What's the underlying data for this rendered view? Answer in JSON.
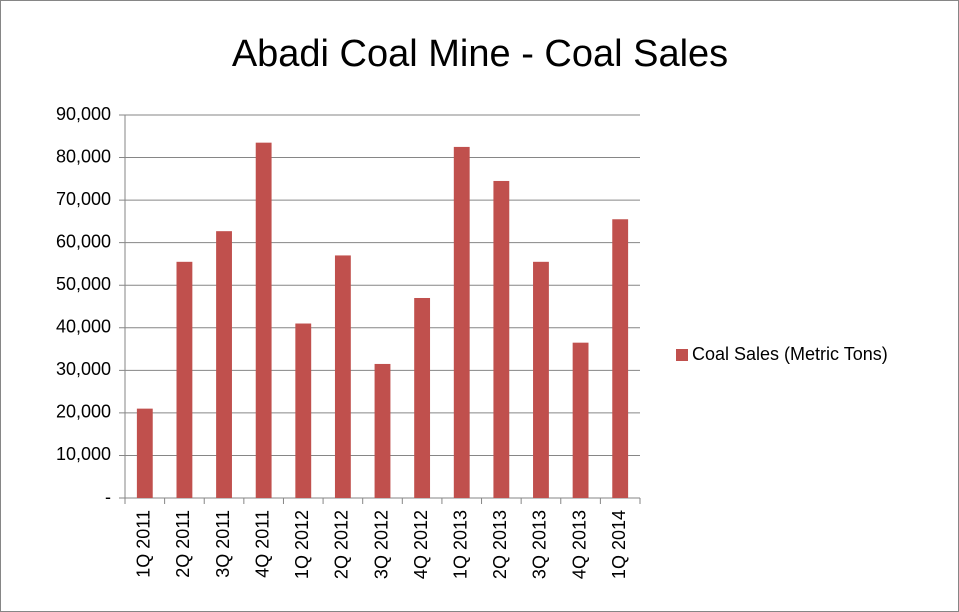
{
  "chart_data": {
    "type": "bar",
    "title": "Abadi Coal Mine - Coal Sales",
    "categories": [
      "1Q 2011",
      "2Q 2011",
      "3Q 2011",
      "4Q 2011",
      "1Q 2012",
      "2Q 2012",
      "3Q 2012",
      "4Q 2012",
      "1Q 2013",
      "2Q 2013",
      "3Q 2013",
      "4Q 2013",
      "1Q 2014"
    ],
    "series": [
      {
        "name": "Coal Sales (Metric Tons)",
        "color": "#c0504d",
        "values": [
          21000,
          55500,
          62700,
          83500,
          41000,
          57000,
          31500,
          47000,
          82500,
          74500,
          55500,
          36500,
          65500
        ]
      }
    ],
    "ylim": [
      0,
      90000
    ],
    "yticks": [
      {
        "value": 0,
        "label": "-"
      },
      {
        "value": 10000,
        "label": "10,000"
      },
      {
        "value": 20000,
        "label": "20,000"
      },
      {
        "value": 30000,
        "label": "30,000"
      },
      {
        "value": 40000,
        "label": "40,000"
      },
      {
        "value": 50000,
        "label": "50,000"
      },
      {
        "value": 60000,
        "label": "60,000"
      },
      {
        "value": 70000,
        "label": "70,000"
      },
      {
        "value": 80000,
        "label": "80,000"
      },
      {
        "value": 90000,
        "label": "90,000"
      }
    ],
    "grid": true,
    "legend": "right"
  }
}
